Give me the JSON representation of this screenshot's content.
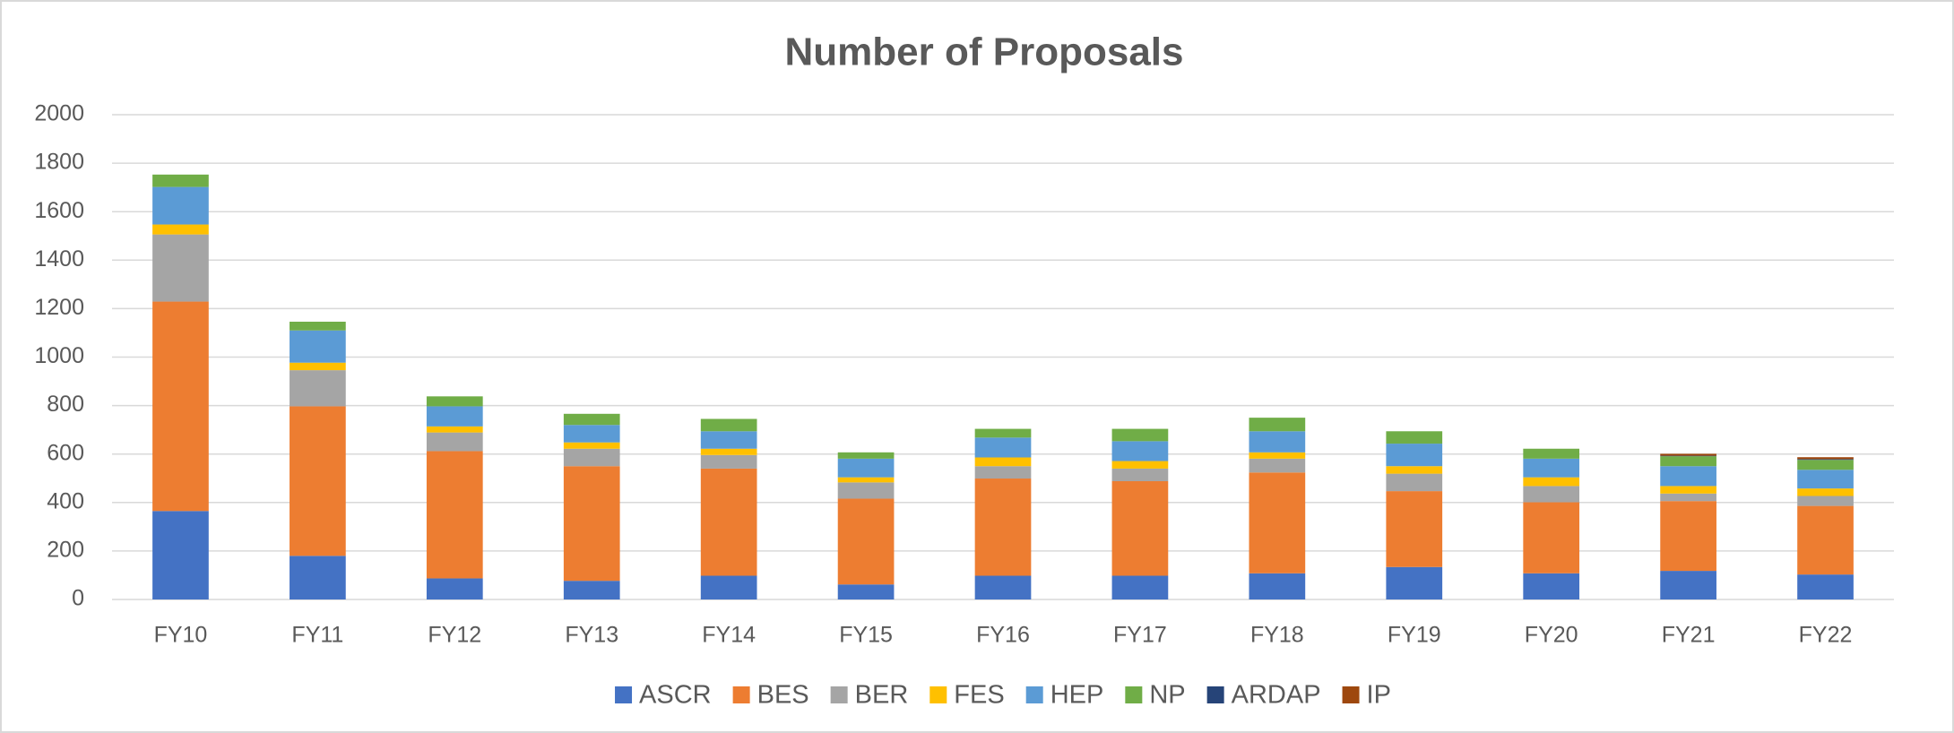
{
  "chart_data": {
    "type": "stacked_bar",
    "title": "Number of Proposals",
    "categories": [
      "FY10",
      "FY11",
      "FY12",
      "FY13",
      "FY14",
      "FY15",
      "FY16",
      "FY17",
      "FY18",
      "FY19",
      "FY20",
      "FY21",
      "FY22"
    ],
    "series": [
      {
        "name": "ASCR",
        "color": "#4472c4",
        "values": [
          365,
          180,
          87,
          77,
          98,
          62,
          98,
          98,
          108,
          134,
          108,
          118,
          103
        ]
      },
      {
        "name": "BES",
        "color": "#ed7d31",
        "values": [
          864,
          617,
          525,
          473,
          442,
          354,
          401,
          390,
          416,
          313,
          293,
          288,
          283
        ]
      },
      {
        "name": "BER",
        "color": "#a5a5a5",
        "values": [
          277,
          149,
          77,
          72,
          56,
          67,
          51,
          52,
          57,
          72,
          67,
          31,
          41
        ]
      },
      {
        "name": "FES",
        "color": "#ffc000",
        "values": [
          41,
          31,
          25,
          26,
          26,
          21,
          36,
          31,
          26,
          31,
          36,
          31,
          31
        ]
      },
      {
        "name": "HEP",
        "color": "#5b9bd5",
        "values": [
          155,
          133,
          83,
          72,
          72,
          77,
          82,
          82,
          87,
          93,
          77,
          82,
          77
        ]
      },
      {
        "name": "NP",
        "color": "#70ad47",
        "values": [
          51,
          36,
          41,
          46,
          51,
          26,
          36,
          51,
          56,
          51,
          41,
          41,
          41
        ]
      },
      {
        "name": "ARDAP",
        "color": "#264478",
        "values": [
          0,
          0,
          0,
          0,
          0,
          0,
          0,
          0,
          0,
          0,
          0,
          2,
          3
        ]
      },
      {
        "name": "IP",
        "color": "#9e480e",
        "values": [
          0,
          0,
          0,
          0,
          0,
          0,
          0,
          0,
          0,
          0,
          0,
          8,
          8
        ]
      }
    ],
    "ylim": [
      0,
      2000
    ],
    "yticks": [
      0,
      200,
      400,
      600,
      800,
      1000,
      1200,
      1400,
      1600,
      1800,
      2000
    ],
    "grid": true,
    "legend": "bottom"
  }
}
